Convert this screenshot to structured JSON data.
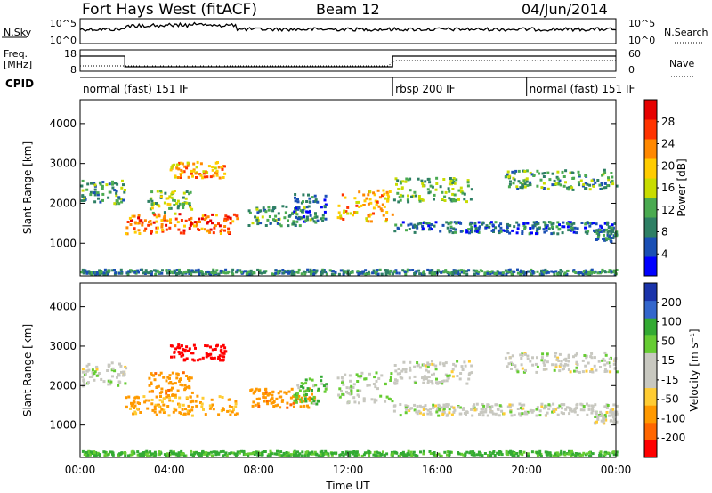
{
  "header": {
    "title": "Fort Hays West (fitACF)",
    "beam": "Beam 12",
    "date": "04/Jun/2014"
  },
  "noise_panel": {
    "left_label": "N.Sky",
    "right_label": "N.Search",
    "left_ticks": [
      "10^5",
      "10^0"
    ],
    "right_ticks": [
      "10^5",
      "10^0"
    ]
  },
  "freq_panel": {
    "left_label_1": "Freq.",
    "left_label_2": "[MHz]",
    "right_label": "Nave",
    "left_ticks": [
      "18",
      "8"
    ],
    "right_ticks": [
      "60",
      "0"
    ]
  },
  "cpid": {
    "label": "CPID",
    "segments": [
      {
        "start_hour": 0,
        "end_hour": 14,
        "label": "normal (fast) 151 IF"
      },
      {
        "start_hour": 14,
        "end_hour": 20,
        "label": "rbsp 200 IF"
      },
      {
        "start_hour": 20,
        "end_hour": 24,
        "label": "normal (fast) 151 IF"
      }
    ]
  },
  "colors": {
    "power": [
      "#0000ff",
      "#1a4fb4",
      "#2e7f64",
      "#4aaa50",
      "#c8dc00",
      "#ffcc00",
      "#ff8800",
      "#ff3300",
      "#e60000"
    ],
    "velocity": [
      "#ff0000",
      "#ff6600",
      "#ff9900",
      "#ffcc33",
      "#c8c8c0",
      "#c8c8c0",
      "#66cc33",
      "#33aa33",
      "#3366cc",
      "#1a33aa"
    ]
  },
  "chart_data": [
    {
      "type": "heatmap",
      "name": "power",
      "ylabel": "Slant Range [km]",
      "ylim": [
        180,
        4600
      ],
      "xlim_hours": [
        0,
        24
      ],
      "yticks": [
        "1000",
        "2000",
        "3000",
        "4000"
      ],
      "colorbar_label": "Power [dB]",
      "colorbar_ticks": [
        "4",
        "8",
        "12",
        "16",
        "20",
        "24",
        "28"
      ],
      "colorbar_range": [
        0,
        32
      ]
    },
    {
      "type": "heatmap",
      "name": "velocity",
      "ylabel": "Slant Range [km]",
      "ylim": [
        180,
        4600
      ],
      "xlim_hours": [
        0,
        24
      ],
      "yticks": [
        "1000",
        "2000",
        "3000",
        "4000"
      ],
      "xticks": [
        "00:00",
        "04:00",
        "08:00",
        "12:00",
        "16:00",
        "20:00",
        "00:00"
      ],
      "xlabel": "Time UT",
      "colorbar_label": "Velocity [m s⁻¹]",
      "colorbar_ticks": [
        "200",
        "100",
        "50",
        "15",
        "-15",
        "-50",
        "-100",
        "-200"
      ]
    }
  ],
  "echo_regions": [
    {
      "t": [
        0.0,
        2.0
      ],
      "r": [
        1950,
        2550
      ],
      "p": 10,
      "v": 0
    },
    {
      "t": [
        2.0,
        7.0
      ],
      "r": [
        1200,
        1700
      ],
      "p": 26,
      "v": -40
    },
    {
      "t": [
        3.0,
        5.0
      ],
      "r": [
        1700,
        2300
      ],
      "p": 14,
      "v": -60
    },
    {
      "t": [
        4.0,
        6.5
      ],
      "r": [
        2600,
        3000
      ],
      "p": 22,
      "v": -250
    },
    {
      "t": [
        7.5,
        10.5
      ],
      "r": [
        1400,
        1900
      ],
      "p": 10,
      "v": -60
    },
    {
      "t": [
        9.5,
        11.0
      ],
      "r": [
        1500,
        2200
      ],
      "p": 6,
      "v": 30
    },
    {
      "t": [
        11.5,
        14.0
      ],
      "r": [
        1500,
        2300
      ],
      "p": 22,
      "v": 10
    },
    {
      "t": [
        14.0,
        17.5
      ],
      "r": [
        2000,
        2600
      ],
      "p": 12,
      "v": 0
    },
    {
      "t": [
        14.0,
        24.0
      ],
      "r": [
        1200,
        1500
      ],
      "p": 6,
      "v": 0
    },
    {
      "t": [
        19.0,
        24.0
      ],
      "r": [
        2300,
        2800
      ],
      "p": 10,
      "v": 0
    },
    {
      "t": [
        23.0,
        24.0
      ],
      "r": [
        1000,
        1300
      ],
      "p": 8,
      "v": 0
    },
    {
      "t": [
        0.0,
        24.0
      ],
      "r": [
        180,
        300
      ],
      "p": 8,
      "v": 40
    }
  ]
}
